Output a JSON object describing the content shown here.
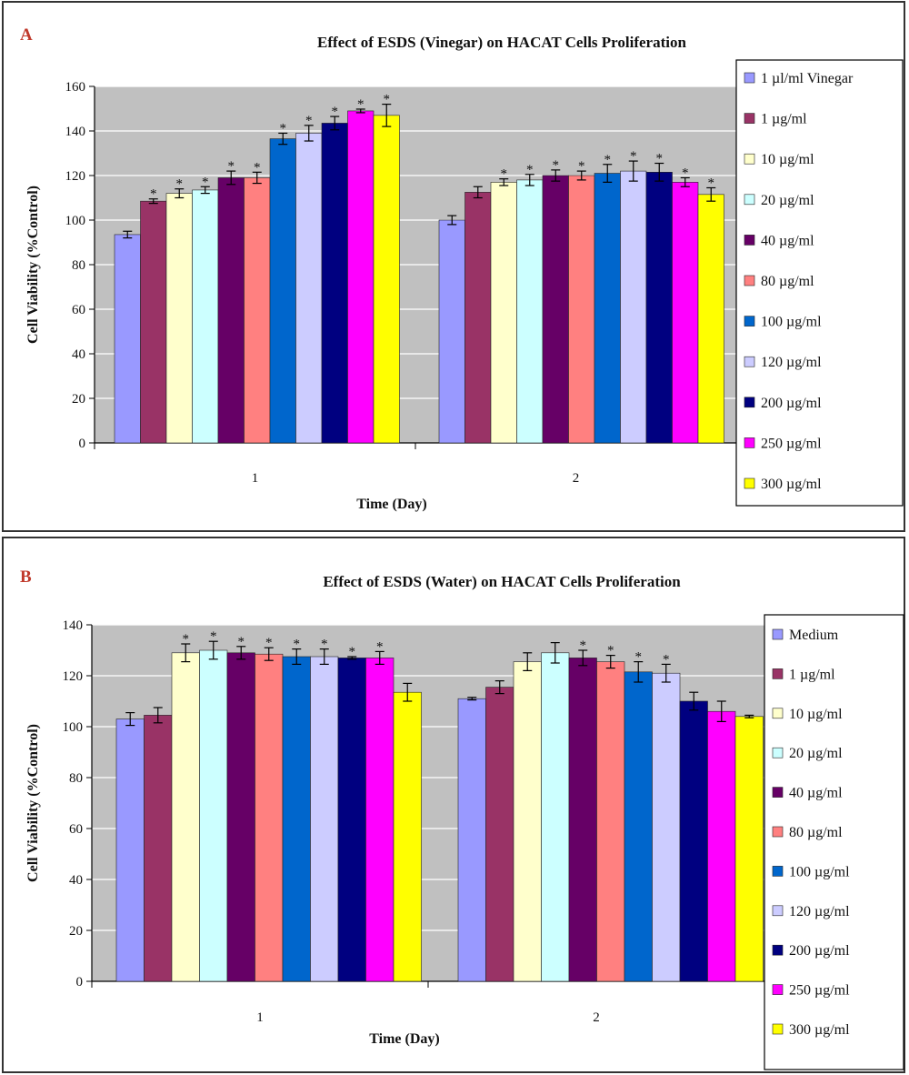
{
  "chart_data": [
    {
      "type": "bar",
      "panel_label": "A",
      "title": "Effect of ESDS (Vinegar) on HACAT  Cells Proliferation",
      "xlabel": "Time (Day)",
      "ylabel": "Cell Viability (%Control)",
      "ylim": [
        0,
        160
      ],
      "yticks": [
        0,
        20,
        40,
        60,
        80,
        100,
        120,
        140,
        160
      ],
      "categories": [
        "1",
        "2"
      ],
      "grid": true,
      "legend_position": "right",
      "series": [
        {
          "name": "1 µl/ml Vinegar",
          "color": "#9999ff",
          "values": [
            93.5,
            100
          ],
          "errors": [
            1.5,
            2
          ],
          "significant": [
            false,
            false
          ]
        },
        {
          "name": "1 µg/ml",
          "color": "#993366",
          "values": [
            108.5,
            112.5
          ],
          "errors": [
            1,
            2.5
          ],
          "significant": [
            true,
            false
          ]
        },
        {
          "name": "10 µg/ml",
          "color": "#ffffcc",
          "values": [
            112,
            117
          ],
          "errors": [
            2,
            1.5
          ],
          "significant": [
            true,
            true
          ]
        },
        {
          "name": "20 µg/ml",
          "color": "#ccffff",
          "values": [
            113.5,
            118
          ],
          "errors": [
            1.5,
            2.5
          ],
          "significant": [
            true,
            true
          ]
        },
        {
          "name": "40 µg/ml",
          "color": "#660066",
          "values": [
            119,
            120
          ],
          "errors": [
            3,
            2.5
          ],
          "significant": [
            true,
            true
          ]
        },
        {
          "name": "80 µg/ml",
          "color": "#ff8080",
          "values": [
            119,
            120
          ],
          "errors": [
            2.5,
            2
          ],
          "significant": [
            true,
            true
          ]
        },
        {
          "name": "100 µg/ml",
          "color": "#0066cc",
          "values": [
            136.5,
            121
          ],
          "errors": [
            2.5,
            4
          ],
          "significant": [
            true,
            true
          ]
        },
        {
          "name": "120 µg/ml",
          "color": "#ccccff",
          "values": [
            139,
            122
          ],
          "errors": [
            3.5,
            4.5
          ],
          "significant": [
            true,
            true
          ]
        },
        {
          "name": "200 µg/ml",
          "color": "#000080",
          "values": [
            143.5,
            121.5
          ],
          "errors": [
            3,
            4
          ],
          "significant": [
            true,
            true
          ]
        },
        {
          "name": "250 µg/ml",
          "color": "#ff00ff",
          "values": [
            149,
            117
          ],
          "errors": [
            0.8,
            2
          ],
          "significant": [
            true,
            true
          ]
        },
        {
          "name": "300 µg/ml",
          "color": "#ffff00",
          "values": [
            147,
            111.5
          ],
          "errors": [
            5,
            3
          ],
          "significant": [
            true,
            true
          ]
        }
      ]
    },
    {
      "type": "bar",
      "panel_label": "B",
      "title": "Effect of ESDS (Water) on HACAT  Cells Proliferation",
      "xlabel": "Time (Day)",
      "ylabel": "Cell Viability (%Control)",
      "ylim": [
        0,
        140
      ],
      "yticks": [
        0,
        20,
        40,
        60,
        80,
        100,
        120,
        140
      ],
      "categories": [
        "1",
        "2"
      ],
      "grid": true,
      "legend_position": "right",
      "series": [
        {
          "name": "Medium",
          "color": "#9999ff",
          "values": [
            103,
            111
          ],
          "errors": [
            2.5,
            0.5
          ],
          "significant": [
            false,
            false
          ]
        },
        {
          "name": "1 µg/ml",
          "color": "#993366",
          "values": [
            104.5,
            115.5
          ],
          "errors": [
            3,
            2.5
          ],
          "significant": [
            false,
            false
          ]
        },
        {
          "name": "10 µg/ml",
          "color": "#ffffcc",
          "values": [
            129,
            125.5
          ],
          "errors": [
            3.5,
            3.5
          ],
          "significant": [
            true,
            false
          ]
        },
        {
          "name": "20 µg/ml",
          "color": "#ccffff",
          "values": [
            130,
            129
          ],
          "errors": [
            3.5,
            4
          ],
          "significant": [
            true,
            false
          ]
        },
        {
          "name": "40 µg/ml",
          "color": "#660066",
          "values": [
            129,
            127
          ],
          "errors": [
            2.5,
            3
          ],
          "significant": [
            true,
            true
          ]
        },
        {
          "name": "80 µg/ml",
          "color": "#ff8080",
          "values": [
            128.5,
            125.5
          ],
          "errors": [
            2.5,
            2.5
          ],
          "significant": [
            true,
            true
          ]
        },
        {
          "name": "100 µg/ml",
          "color": "#0066cc",
          "values": [
            127.5,
            121.5
          ],
          "errors": [
            3,
            4
          ],
          "significant": [
            true,
            true
          ]
        },
        {
          "name": "120 µg/ml",
          "color": "#ccccff",
          "values": [
            127.5,
            121
          ],
          "errors": [
            3,
            3.5
          ],
          "significant": [
            true,
            true
          ]
        },
        {
          "name": "200 µg/ml",
          "color": "#000080",
          "values": [
            127,
            110
          ],
          "errors": [
            0.5,
            3.5
          ],
          "significant": [
            true,
            false
          ]
        },
        {
          "name": "250 µg/ml",
          "color": "#ff00ff",
          "values": [
            127,
            106
          ],
          "errors": [
            2.5,
            4
          ],
          "significant": [
            true,
            false
          ]
        },
        {
          "name": "300 µg/ml",
          "color": "#ffff00",
          "values": [
            113.5,
            104
          ],
          "errors": [
            3.5,
            0.5
          ],
          "significant": [
            false,
            false
          ]
        }
      ]
    }
  ],
  "significance_marker": "*"
}
